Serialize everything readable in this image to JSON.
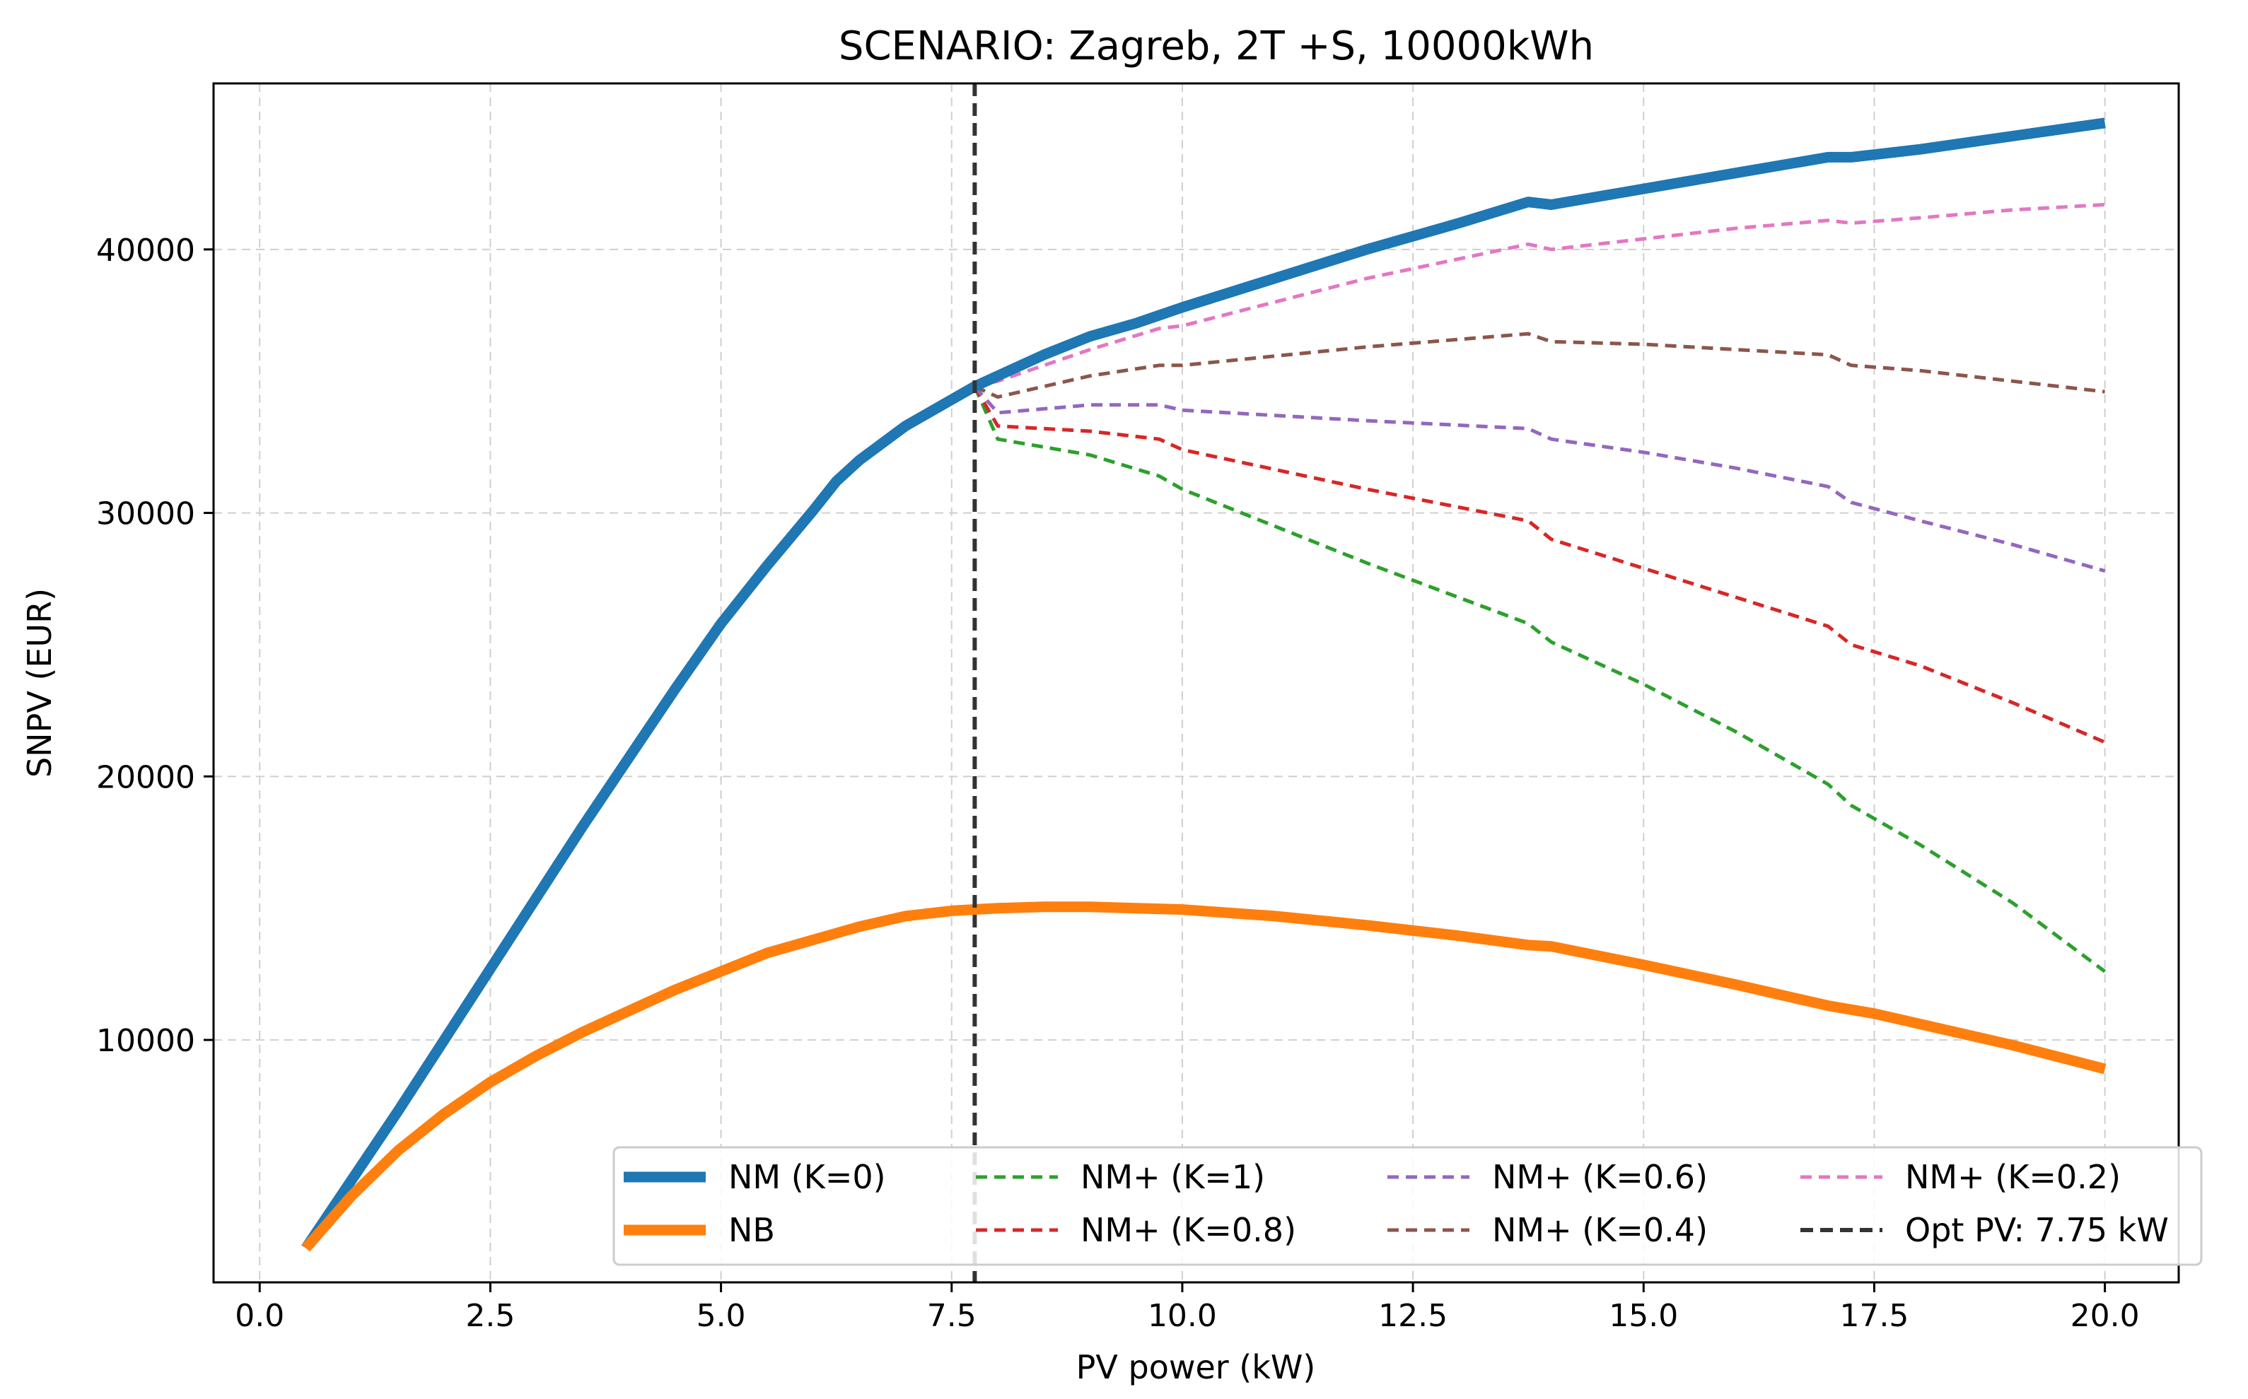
{
  "chart_data": {
    "type": "line",
    "title": "SCENARIO: Zagreb, 2T +S, 10000kWh",
    "xlabel": "PV power (kW)",
    "ylabel": "SNPV (EUR)",
    "xlim": [
      -0.5,
      20.8
    ],
    "ylim": [
      800,
      46300
    ],
    "xticks": [
      0.0,
      2.5,
      5.0,
      7.5,
      10.0,
      12.5,
      15.0,
      17.5,
      20.0
    ],
    "xtick_labels": [
      "0.0",
      "2.5",
      "5.0",
      "7.5",
      "10.0",
      "12.5",
      "15.0",
      "17.5",
      "20.0"
    ],
    "yticks": [
      10000,
      20000,
      30000,
      40000
    ],
    "ytick_labels": [
      "10000",
      "20000",
      "30000",
      "40000"
    ],
    "grid": true,
    "legend_position": "lower-right",
    "vline": {
      "x": 7.75,
      "label": "Opt PV: 7.75 kW",
      "color": "#333333"
    },
    "series": [
      {
        "name": "NM (K=0)",
        "color": "#1f77b4",
        "style": "solid",
        "weight": "thick",
        "x": [
          0.5,
          1.0,
          1.5,
          2.0,
          2.5,
          3.0,
          3.5,
          4.0,
          4.5,
          5.0,
          5.5,
          6.0,
          6.25,
          6.5,
          7.0,
          7.5,
          7.75,
          8.0,
          8.5,
          9.0,
          9.5,
          9.75,
          10.0,
          11.0,
          12.0,
          13.0,
          13.75,
          14.0,
          15.0,
          16.0,
          17.0,
          17.25,
          18.0,
          19.0,
          20.0
        ],
        "y": [
          2100,
          4700,
          7300,
          10000,
          12700,
          15400,
          18100,
          20700,
          23300,
          25800,
          28000,
          30100,
          31200,
          32000,
          33300,
          34300,
          34800,
          35200,
          36000,
          36700,
          37200,
          37500,
          37800,
          38900,
          40000,
          41000,
          41800,
          41700,
          42300,
          42900,
          43500,
          43500,
          43800,
          44300,
          44800
        ]
      },
      {
        "name": "NB",
        "color": "#ff7f0e",
        "style": "solid",
        "weight": "thick",
        "x": [
          0.5,
          1.0,
          1.5,
          2.0,
          2.5,
          3.0,
          3.5,
          4.0,
          4.5,
          5.0,
          5.5,
          6.0,
          6.5,
          7.0,
          7.5,
          8.0,
          8.5,
          9.0,
          9.5,
          10.0,
          11.0,
          12.0,
          13.0,
          13.75,
          14.0,
          15.0,
          16.0,
          17.0,
          17.5,
          18.0,
          19.0,
          20.0
        ],
        "y": [
          2100,
          4100,
          5800,
          7200,
          8400,
          9400,
          10300,
          11100,
          11900,
          12600,
          13300,
          13800,
          14300,
          14700,
          14900,
          15000,
          15050,
          15050,
          15000,
          14950,
          14700,
          14350,
          13950,
          13600,
          13550,
          12850,
          12100,
          11300,
          11000,
          10600,
          9800,
          8900
        ]
      },
      {
        "name": "NM+ (K=1)",
        "color": "#2ca02c",
        "style": "dashed",
        "weight": "thin",
        "x": [
          7.75,
          8.0,
          9.0,
          9.75,
          10.0,
          12.0,
          13.75,
          14.0,
          15.0,
          16.0,
          17.0,
          17.25,
          18.0,
          19.0,
          20.0
        ],
        "y": [
          34800,
          32800,
          32200,
          31400,
          30900,
          28100,
          25800,
          25100,
          23500,
          21700,
          19700,
          18900,
          17400,
          15200,
          12600
        ]
      },
      {
        "name": "NM+ (K=0.8)",
        "color": "#d62728",
        "style": "dashed",
        "weight": "thin",
        "x": [
          7.75,
          8.0,
          9.0,
          9.75,
          10.0,
          12.0,
          13.75,
          14.0,
          15.0,
          16.0,
          17.0,
          17.25,
          18.0,
          19.0,
          20.0
        ],
        "y": [
          34800,
          33300,
          33100,
          32800,
          32400,
          30900,
          29700,
          29000,
          27900,
          26800,
          25700,
          25000,
          24200,
          22800,
          21300
        ]
      },
      {
        "name": "NM+ (K=0.6)",
        "color": "#9467bd",
        "style": "dashed",
        "weight": "thin",
        "x": [
          7.75,
          8.0,
          9.0,
          9.75,
          10.0,
          12.0,
          13.75,
          14.0,
          15.0,
          16.0,
          17.0,
          17.25,
          18.0,
          19.0,
          20.0
        ],
        "y": [
          34800,
          33800,
          34100,
          34100,
          33900,
          33500,
          33200,
          32800,
          32300,
          31700,
          31000,
          30400,
          29700,
          28800,
          27800
        ]
      },
      {
        "name": "NM+ (K=0.4)",
        "color": "#8c564b",
        "style": "dashed",
        "weight": "thin",
        "x": [
          7.75,
          8.0,
          9.0,
          9.75,
          10.0,
          12.0,
          13.75,
          14.0,
          15.0,
          16.0,
          17.0,
          17.25,
          18.0,
          19.0,
          20.0
        ],
        "y": [
          34800,
          34400,
          35200,
          35600,
          35600,
          36300,
          36800,
          36500,
          36400,
          36200,
          36000,
          35600,
          35400,
          35000,
          34600
        ]
      },
      {
        "name": "NM+ (K=0.2)",
        "color": "#e377c2",
        "style": "dashed",
        "weight": "thin",
        "x": [
          7.75,
          8.0,
          9.0,
          9.75,
          10.0,
          12.0,
          13.75,
          14.0,
          15.0,
          16.0,
          17.0,
          17.25,
          18.0,
          19.0,
          20.0
        ],
        "y": [
          34800,
          35000,
          36200,
          37000,
          37100,
          38900,
          40200,
          40000,
          40400,
          40800,
          41100,
          41000,
          41200,
          41500,
          41700
        ]
      }
    ],
    "legend": [
      {
        "label": "NM (K=0)",
        "color": "#1f77b4",
        "style": "solid",
        "weight": "thick"
      },
      {
        "label": "NB",
        "color": "#ff7f0e",
        "style": "solid",
        "weight": "thick"
      },
      {
        "label": "NM+ (K=1)",
        "color": "#2ca02c",
        "style": "dashed",
        "weight": "thin"
      },
      {
        "label": "NM+ (K=0.8)",
        "color": "#d62728",
        "style": "dashed",
        "weight": "thin"
      },
      {
        "label": "NM+ (K=0.6)",
        "color": "#9467bd",
        "style": "dashed",
        "weight": "thin"
      },
      {
        "label": "NM+ (K=0.4)",
        "color": "#8c564b",
        "style": "dashed",
        "weight": "thin"
      },
      {
        "label": "NM+ (K=0.2)",
        "color": "#e377c2",
        "style": "dashed",
        "weight": "thin"
      },
      {
        "label": "Opt PV: 7.75 kW",
        "color": "#333333",
        "style": "dashed",
        "weight": "medium"
      }
    ]
  }
}
